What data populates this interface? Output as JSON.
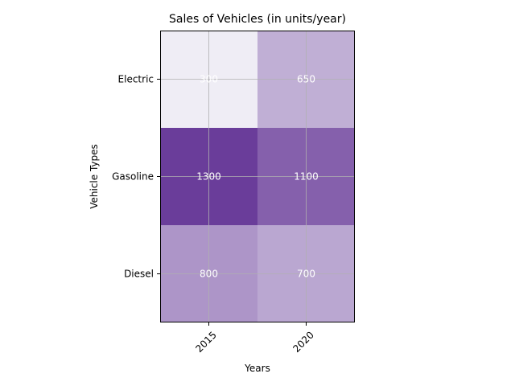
{
  "chart_data": {
    "type": "heatmap",
    "title": "Sales of Vehicles (in units/year)",
    "xlabel": "Years",
    "ylabel": "Vehicle Types",
    "x_categories": [
      "2015",
      "2020"
    ],
    "y_categories": [
      "Electric",
      "Gasoline",
      "Diesel"
    ],
    "values": [
      [
        300,
        650
      ],
      [
        1300,
        1100
      ],
      [
        800,
        700
      ]
    ],
    "value_labels": [
      [
        "300",
        "650"
      ],
      [
        "1300",
        "1100"
      ],
      [
        "800",
        "700"
      ]
    ],
    "colormap": "Purples",
    "color_range": [
      300,
      1300
    ],
    "color_low": "#efedf5",
    "color_high": "#6a3d9a",
    "grid": true,
    "x_tick_rotation": 45
  }
}
